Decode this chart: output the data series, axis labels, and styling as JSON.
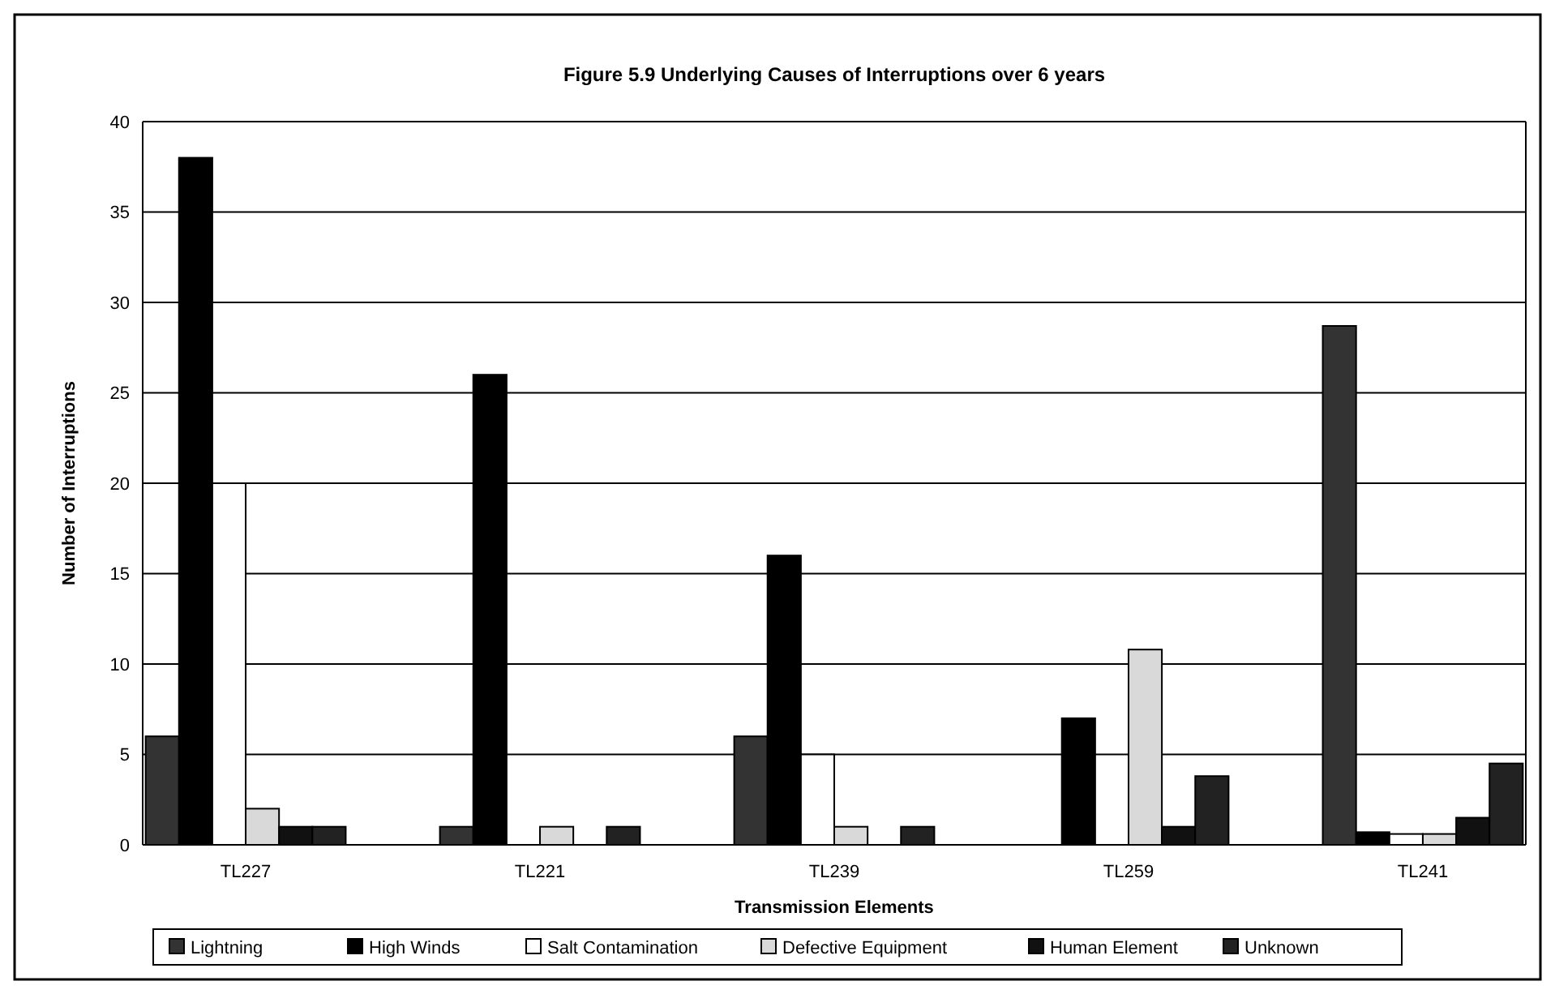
{
  "chart_data": {
    "type": "bar",
    "title": "Figure 5.9  Underlying Causes of Interruptions over 6 years",
    "xlabel": "Transmission Elements",
    "ylabel": "Number of Interruptions",
    "categories": [
      "TL227",
      "TL221",
      "TL239",
      "TL259",
      "TL241"
    ],
    "series": [
      {
        "name": "Lightning",
        "color": "#333333",
        "values": [
          6,
          1,
          6,
          0,
          28.7
        ]
      },
      {
        "name": "High Winds",
        "color": "#000000",
        "values": [
          38,
          26,
          16,
          7,
          0.7
        ]
      },
      {
        "name": "Salt Contamination",
        "color": "#ffffff",
        "values": [
          20,
          0,
          5,
          0,
          0.6
        ]
      },
      {
        "name": "Defective Equipment",
        "color": "#d9d9d9",
        "values": [
          2,
          1,
          1,
          10.8,
          0.6
        ]
      },
      {
        "name": "Human Element",
        "color": "#111111",
        "values": [
          1,
          0,
          0,
          1,
          1.5
        ]
      },
      {
        "name": "Unknown",
        "color": "#222222",
        "values": [
          1,
          1,
          1,
          3.8,
          4.5
        ]
      }
    ],
    "ylim": [
      0,
      40
    ],
    "yticks": [
      0,
      5,
      10,
      15,
      20,
      25,
      30,
      35,
      40
    ],
    "grid": "y",
    "legend": "bottom"
  }
}
